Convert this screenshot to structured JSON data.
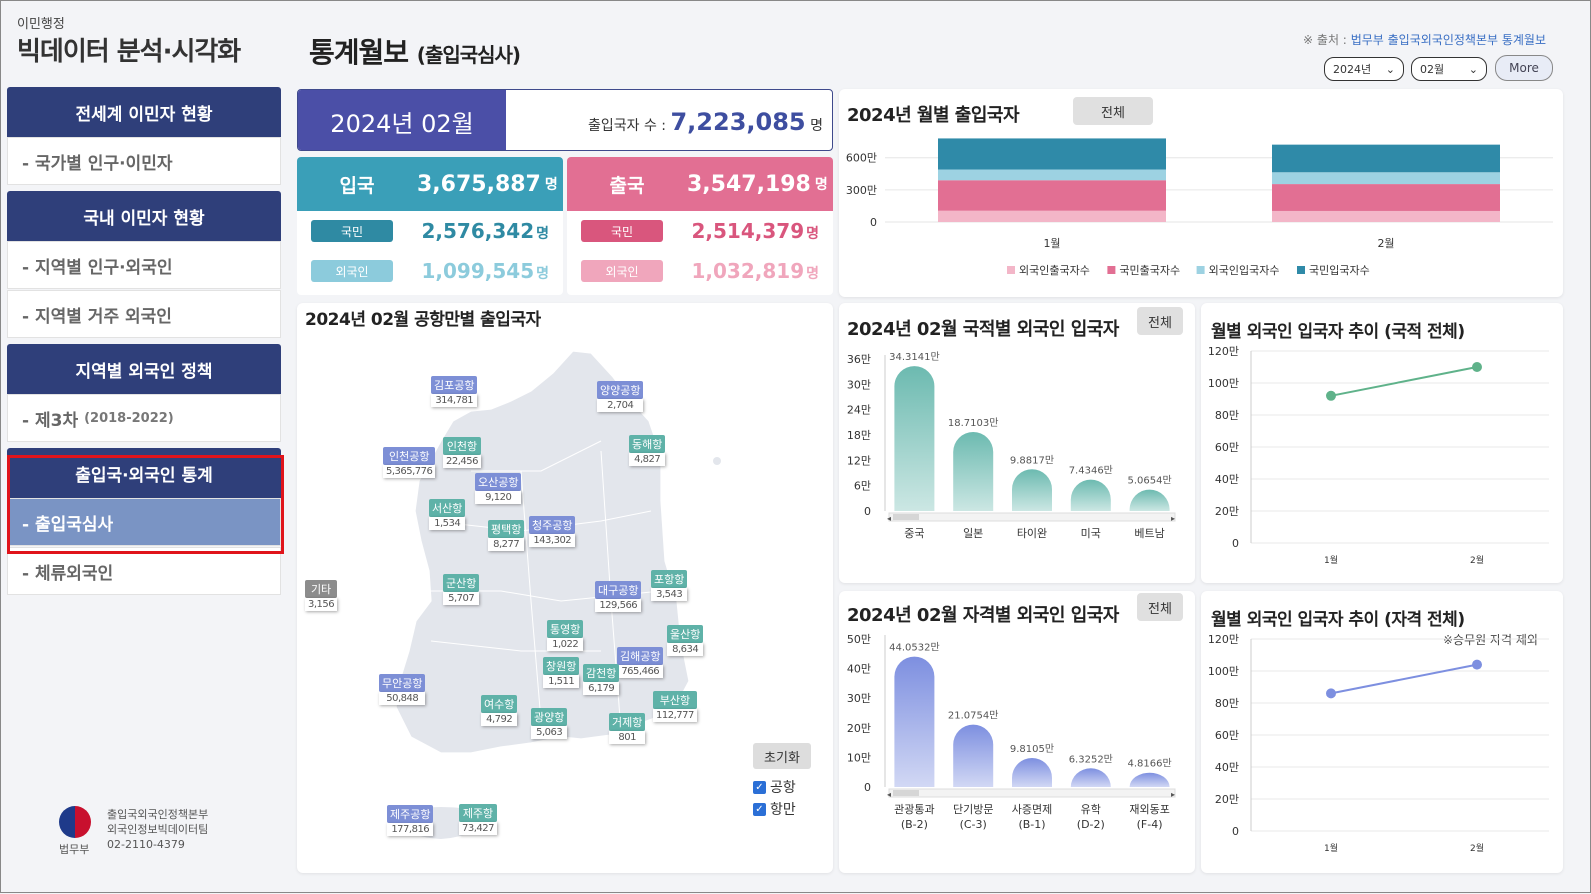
{
  "sidebar": {
    "brand_small": "이민행정",
    "brand_big": "빅데이터 분석·시각화",
    "sections": [
      {
        "head": "전세계 이민자 현황",
        "items": [
          "- 국가별 인구·이민자"
        ]
      },
      {
        "head": "국내 이민자 현황",
        "items": [
          "- 지역별 인구·외국인",
          "- 지역별 거주 외국인"
        ]
      },
      {
        "head": "지역별 외국인 정책",
        "items": [
          "- 제3차"
        ],
        "item_note": "(2018-2022)"
      },
      {
        "head": "출입국·외국인 통계",
        "items": [
          "- 출입국심사",
          "- 체류외국인"
        ]
      }
    ],
    "footer": {
      "org": "법무부",
      "line1": "출입국외국인정책본부",
      "line2": "외국인정보빅데이터팀",
      "phone": "02-2110-4379"
    }
  },
  "header": {
    "title": "통계월보",
    "subtitle": "(출입국심사)",
    "source_prefix": "※ 출처 :",
    "source_link": "법무부 출입국외국인정책본부 통계월보",
    "year_select": "2024년",
    "month_select": "02월",
    "more_label": "More"
  },
  "summary": {
    "month": "2024년 02월",
    "total_label": "출입국자 수 :",
    "total_value": "7,223,085",
    "unit": "명",
    "entry": {
      "label": "입국",
      "value": "3,675,887",
      "citizen_label": "국민",
      "citizen_value": "2,576,342",
      "foreign_label": "외국인",
      "foreign_value": "1,099,545"
    },
    "exit": {
      "label": "출국",
      "value": "3,547,198",
      "citizen_label": "국민",
      "citizen_value": "2,514,379",
      "foreign_label": "외국인",
      "foreign_value": "1,032,819"
    },
    "colors": {
      "entry": "#3a9fb8",
      "exit": "#e26f93",
      "entry_citizen": "#2f8aa3",
      "entry_foreign": "#8ccbdc",
      "exit_citizen": "#d9567d",
      "exit_foreign": "#f0a6bc"
    }
  },
  "monthly_chart": {
    "title": "2024년 월별 출입국자",
    "btn": "전체",
    "chart_data": {
      "type": "bar",
      "stacked": true,
      "categories": [
        "1월",
        "2월"
      ],
      "y_ticks": [
        "600만",
        "300만",
        "0"
      ],
      "series": [
        {
          "name": "외국인출국자수",
          "color": "#f3b6c8",
          "values": [
            1.05,
            1.03
          ]
        },
        {
          "name": "국민출국자수",
          "color": "#e26f93",
          "values": [
            2.85,
            2.51
          ]
        },
        {
          "name": "외국인입국자수",
          "color": "#9dd2e2",
          "values": [
            1.0,
            1.1
          ]
        },
        {
          "name": "국민입국자수",
          "color": "#2f8aa8",
          "values": [
            2.9,
            2.58
          ]
        }
      ],
      "ylim": [
        0,
        800
      ]
    }
  },
  "map_panel": {
    "title": "2024년 02월 공항만별 출입국자",
    "reset": "초기화",
    "checks": [
      "공항",
      "항만"
    ],
    "airports": [
      {
        "name": "김포공항",
        "value": "314,781",
        "type": "air"
      },
      {
        "name": "양양공항",
        "value": "2,704",
        "type": "air"
      },
      {
        "name": "인천공항",
        "value": "5,365,776",
        "type": "air"
      },
      {
        "name": "인천항",
        "value": "22,456",
        "type": "sea"
      },
      {
        "name": "동해항",
        "value": "4,827",
        "type": "sea"
      },
      {
        "name": "오산공항",
        "value": "9,120",
        "type": "air"
      },
      {
        "name": "서산항",
        "value": "1,534",
        "type": "sea"
      },
      {
        "name": "평택항",
        "value": "8,277",
        "type": "sea"
      },
      {
        "name": "청주공항",
        "value": "143,302",
        "type": "air"
      },
      {
        "name": "기타",
        "value": "3,156",
        "type": "etc"
      },
      {
        "name": "군산항",
        "value": "5,707",
        "type": "sea"
      },
      {
        "name": "대구공항",
        "value": "129,566",
        "type": "air"
      },
      {
        "name": "포항항",
        "value": "3,543",
        "type": "sea"
      },
      {
        "name": "통영항",
        "value": "1,022",
        "type": "sea"
      },
      {
        "name": "울산항",
        "value": "8,634",
        "type": "sea"
      },
      {
        "name": "창원항",
        "value": "1,511",
        "type": "sea"
      },
      {
        "name": "김해공항",
        "value": "765,466",
        "type": "air"
      },
      {
        "name": "감천항",
        "value": "6,179",
        "type": "sea"
      },
      {
        "name": "무안공항",
        "value": "50,848",
        "type": "air"
      },
      {
        "name": "여수항",
        "value": "4,792",
        "type": "sea"
      },
      {
        "name": "광양항",
        "value": "5,063",
        "type": "sea"
      },
      {
        "name": "부산항",
        "value": "112,777",
        "type": "sea"
      },
      {
        "name": "거제항",
        "value": "801",
        "type": "sea"
      },
      {
        "name": "제주공항",
        "value": "177,816",
        "type": "air"
      },
      {
        "name": "제주항",
        "value": "73,427",
        "type": "sea"
      }
    ],
    "colors": {
      "air": "#7d8fd6",
      "sea": "#5fb2a8",
      "etc": "#8c8c8c"
    }
  },
  "nation_chart": {
    "title": "2024년 02월 국적별 외국인 입국자",
    "btn": "전체",
    "chart_data": {
      "type": "bar",
      "categories": [
        "중국",
        "일본",
        "타이완",
        "미국",
        "베트남"
      ],
      "values": [
        34.3141,
        18.7103,
        9.8817,
        7.4346,
        5.0654
      ],
      "labels": [
        "34.3141만",
        "18.7103만",
        "9.8817만",
        "7.4346만",
        "5.0654만"
      ],
      "y_ticks": [
        "36만",
        "30만",
        "24만",
        "18만",
        "12만",
        "6만",
        "0"
      ],
      "ylim": [
        0,
        36
      ],
      "color": "#6cbab0"
    }
  },
  "trend_nation": {
    "title": "월별 외국인 입국자 추이 (국적 전체)",
    "chart_data": {
      "type": "line",
      "x": [
        "1월",
        "2월"
      ],
      "values": [
        92,
        110
      ],
      "y_ticks": [
        "120만",
        "100만",
        "80만",
        "60만",
        "40만",
        "20만",
        "0"
      ],
      "ylim": [
        0,
        120
      ],
      "color": "#5fb28a"
    }
  },
  "visa_chart": {
    "title": "2024년 02월 자격별 외국인 입국자",
    "btn": "전체",
    "chart_data": {
      "type": "bar",
      "categories": [
        "관광통과\n(B-2)",
        "단기방문\n(C-3)",
        "사증면제\n(B-1)",
        "유학\n(D-2)",
        "재외동포\n(F-4)"
      ],
      "values": [
        44.0532,
        21.0754,
        9.8105,
        6.3252,
        4.8166
      ],
      "labels": [
        "44.0532만",
        "21.0754만",
        "9.8105만",
        "6.3252만",
        "4.8166만"
      ],
      "y_ticks": [
        "50만",
        "40만",
        "30만",
        "20만",
        "10만",
        "0"
      ],
      "ylim": [
        0,
        50
      ],
      "color": "#7d8fe0"
    }
  },
  "trend_visa": {
    "title": "월별 외국인 입국자 추이 (자격 전체)",
    "note": "※승무원 자격 제외",
    "chart_data": {
      "type": "line",
      "x": [
        "1월",
        "2월"
      ],
      "values": [
        86,
        104
      ],
      "y_ticks": [
        "120만",
        "100만",
        "80만",
        "60만",
        "40만",
        "20만",
        "0"
      ],
      "ylim": [
        0,
        120
      ],
      "color": "#7d8fe0"
    }
  }
}
